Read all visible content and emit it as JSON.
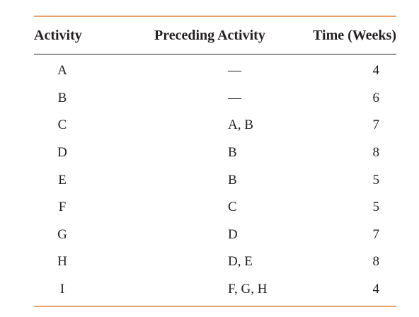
{
  "table": {
    "headers": {
      "activity": "Activity",
      "preceding": "Preceding Activity",
      "time": "Time (Weeks)"
    },
    "rows": [
      {
        "activity": "A",
        "preceding": "—",
        "time": "4"
      },
      {
        "activity": "B",
        "preceding": "—",
        "time": "6"
      },
      {
        "activity": "C",
        "preceding": "A, B",
        "time": "7"
      },
      {
        "activity": "D",
        "preceding": "B",
        "time": "8"
      },
      {
        "activity": "E",
        "preceding": "B",
        "time": "5"
      },
      {
        "activity": "F",
        "preceding": "C",
        "time": "5"
      },
      {
        "activity": "G",
        "preceding": "D",
        "time": "7"
      },
      {
        "activity": "H",
        "preceding": "D, E",
        "time": "8"
      },
      {
        "activity": "I",
        "preceding": "F, G, H",
        "time": "4"
      }
    ]
  },
  "colors": {
    "rule": "#e8a16a",
    "text": "#231f20"
  }
}
